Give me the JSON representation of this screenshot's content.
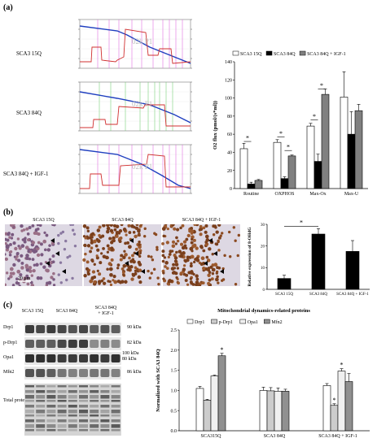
{
  "panel_a": {
    "label": "(a)",
    "traces": [
      {
        "name": "SCA3 15Q",
        "watermark": "02k P1"
      },
      {
        "name": "SCA3 84Q",
        "watermark": "02k P1"
      },
      {
        "name": "SCA3 84Q + IGF-1",
        "watermark": "02k P1"
      }
    ]
  },
  "panel_b": {
    "label": "(b)",
    "images": [
      "SCA3 15Q",
      "SCA3 84Q",
      "SCA3 84Q + IGF-1"
    ],
    "scale_bar": "20 μm"
  },
  "panel_c": {
    "label": "(c)",
    "wb_lanes": [
      "SCA3 15Q",
      "SCA3 84Q",
      "SCA3 84Q\n+ IGF-1"
    ],
    "wb_rows": [
      {
        "name": "Drp1",
        "kda": "90 kDa"
      },
      {
        "name": "p-Drp1",
        "kda": "82 kDa"
      },
      {
        "name": "Opa1",
        "kda": "100 kDa\n80 kDa"
      },
      {
        "name": "Mfn2",
        "kda": "86 kDa"
      },
      {
        "name": "Total protein",
        "kda": ""
      }
    ]
  },
  "chart_data": [
    {
      "type": "bar",
      "title": "",
      "ylabel": "O2 flux (pmol/(s*ml))",
      "xlabel": "",
      "categories": [
        "Routine",
        "OXPHOS",
        "Max-Ox",
        "Max-U"
      ],
      "ylim": [
        0,
        140
      ],
      "yticks": [
        0,
        20,
        40,
        60,
        80,
        100,
        120,
        140
      ],
      "legend": "top",
      "series": [
        {
          "name": "SCA3 15Q",
          "color": "#ffffff",
          "values": [
            44,
            51,
            69,
            101
          ],
          "errors": [
            6,
            3,
            3,
            28
          ]
        },
        {
          "name": "SCA3 84Q",
          "color": "#000000",
          "values": [
            5,
            11,
            30,
            60
          ],
          "errors": [
            2,
            2,
            8,
            25
          ]
        },
        {
          "name": "SCA3 84Q + IGF-1",
          "color": "#808080",
          "values": [
            9,
            36,
            104,
            86
          ],
          "errors": [
            1,
            1,
            6,
            7
          ]
        }
      ],
      "significance": "*"
    },
    {
      "type": "bar",
      "title": "",
      "ylabel": "Relative expression of 8-OHdG",
      "xlabel": "",
      "categories": [
        "SCA3 15Q",
        "SCA3 84Q",
        "SCA3 84Q + IGF-1"
      ],
      "ylim": [
        0,
        30
      ],
      "yticks": [
        0,
        10,
        20,
        30
      ],
      "series": [
        {
          "color": "#000000",
          "values": [
            5,
            25.5,
            17.5
          ],
          "errors": [
            1.5,
            2.5,
            5
          ]
        }
      ],
      "significance": "*"
    },
    {
      "type": "bar",
      "title": "Mitochondrial dynamics-related proteins",
      "ylabel": "Normalized with SCA3 84Q",
      "xlabel": "",
      "categories": [
        "SCA315Q",
        "SCA3 84Q",
        "SCA3 84Q + IGF-1"
      ],
      "ylim": [
        0,
        2.5
      ],
      "yticks": [
        0.0,
        0.5,
        1.0,
        1.5,
        2.0,
        2.5
      ],
      "legend": "top",
      "series": [
        {
          "name": "Drp1",
          "color": "#ffffff",
          "values": [
            1.05,
            1.0,
            1.12
          ],
          "errors": [
            0.05,
            0.08,
            0.05
          ]
        },
        {
          "name": "p-Drp1",
          "color": "#cccccc",
          "values": [
            0.76,
            0.99,
            0.63
          ],
          "errors": [
            0.02,
            0.08,
            0.04
          ]
        },
        {
          "name": "Opa1",
          "color": "#f0f0f0",
          "values": [
            1.36,
            0.98,
            1.48
          ],
          "errors": [
            0.02,
            0.08,
            0.06
          ]
        },
        {
          "name": "Mfn2",
          "color": "#909090",
          "values": [
            1.86,
            0.98,
            1.22
          ],
          "errors": [
            0.06,
            0.05,
            0.2
          ]
        }
      ],
      "significance": "*"
    }
  ]
}
